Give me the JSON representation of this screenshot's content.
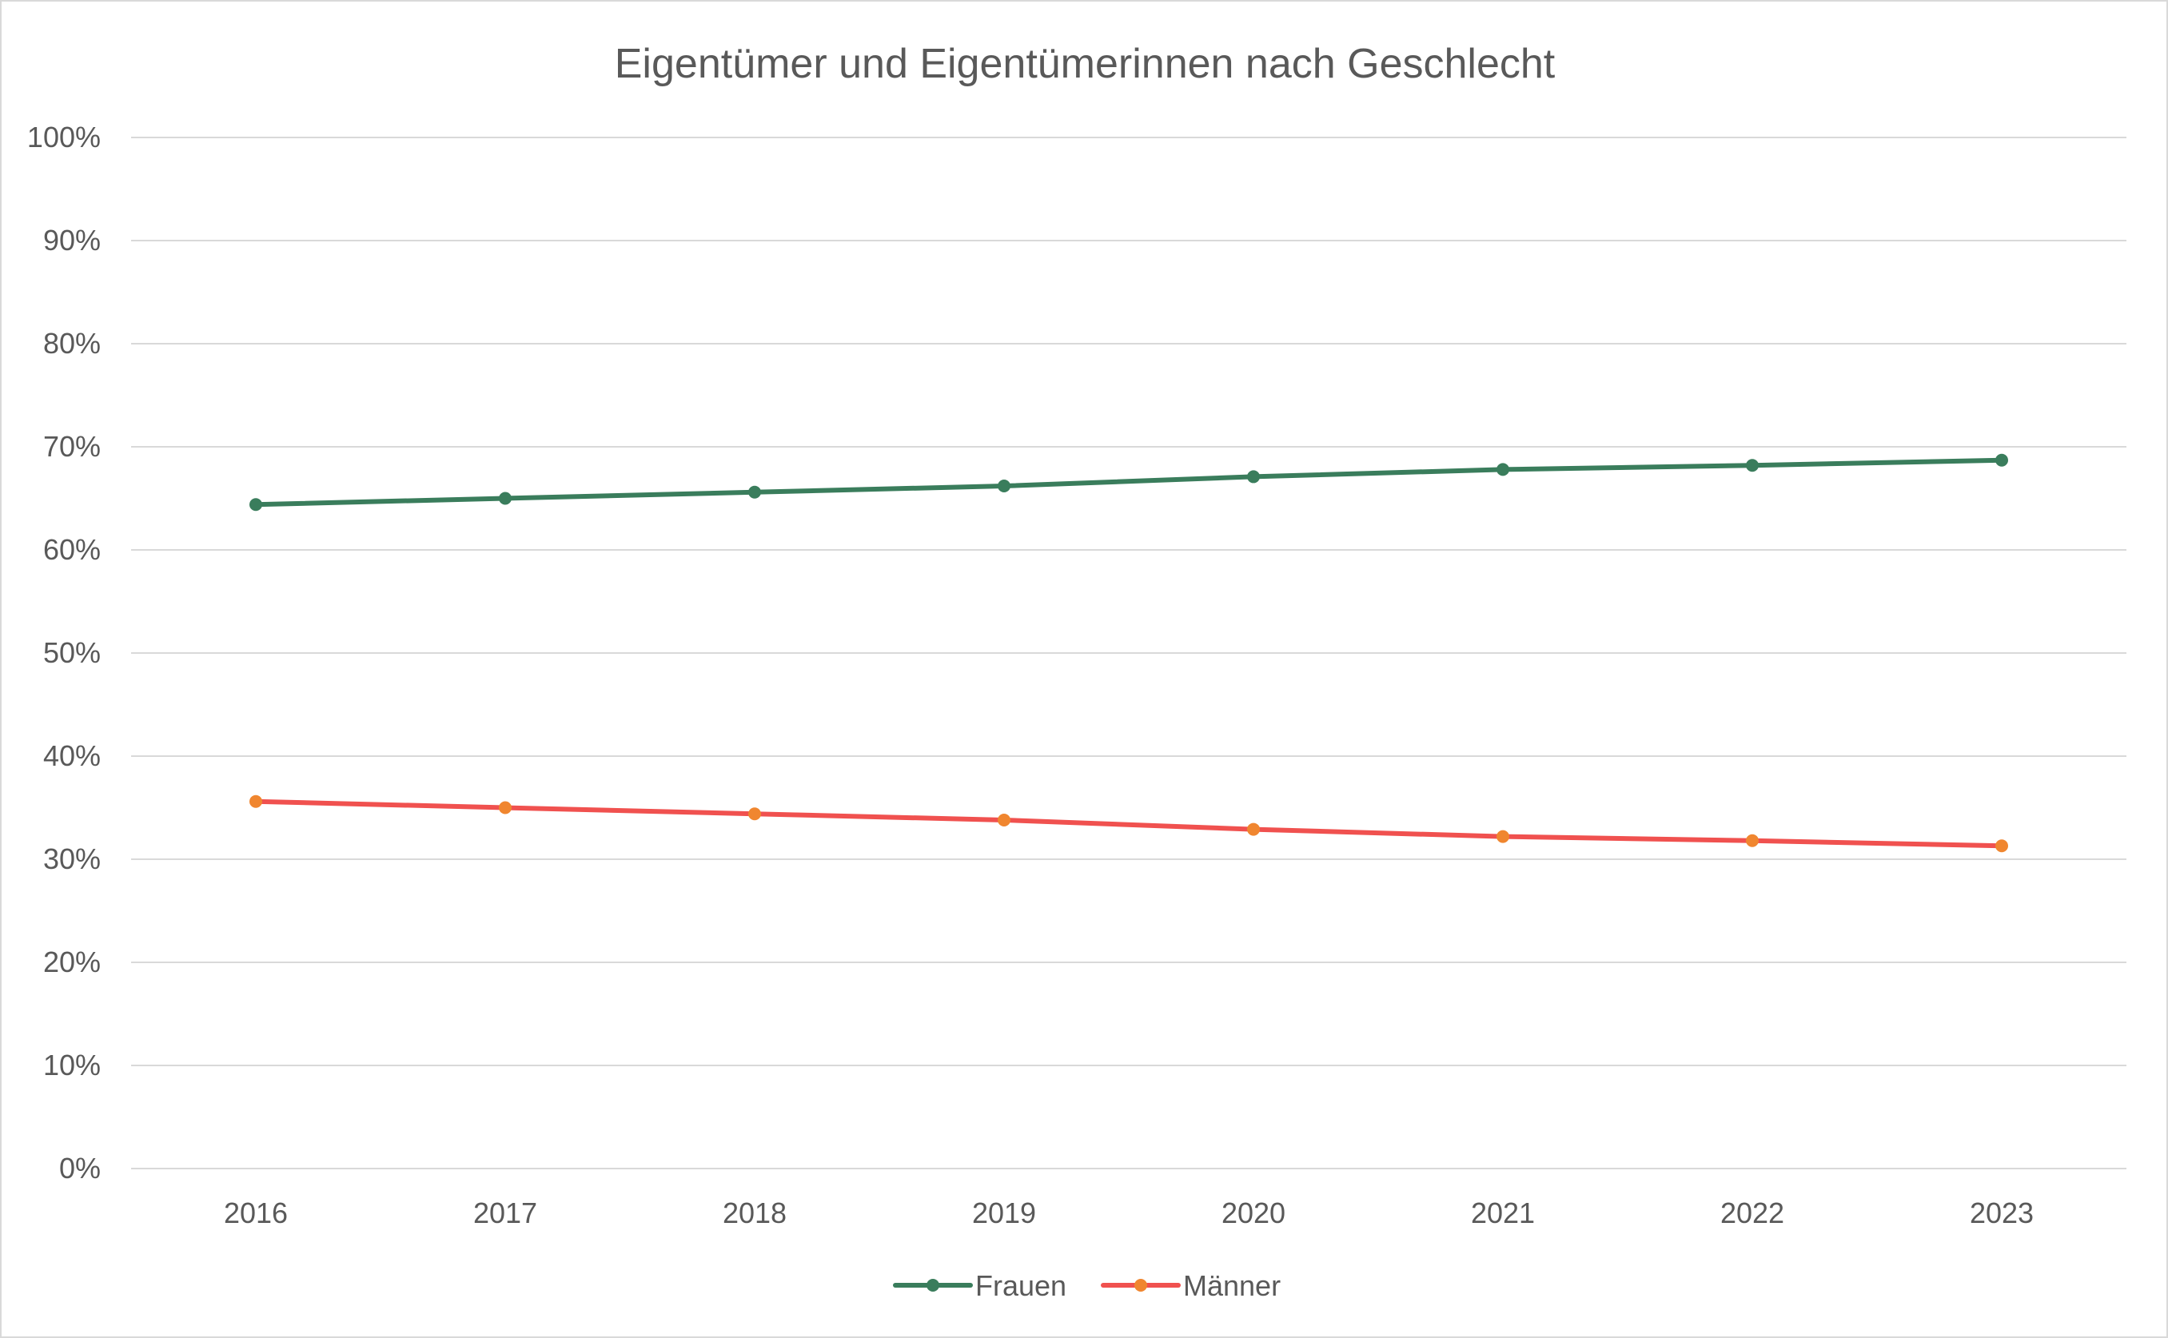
{
  "chart_data": {
    "type": "line",
    "title": "Eigentümer und Eigentümerinnen nach Geschlecht",
    "xlabel": "",
    "ylabel": "",
    "categories": [
      "2016",
      "2017",
      "2018",
      "2019",
      "2020",
      "2021",
      "2022",
      "2023"
    ],
    "y_ticks": [
      "0%",
      "10%",
      "20%",
      "30%",
      "40%",
      "50%",
      "60%",
      "70%",
      "80%",
      "90%",
      "100%"
    ],
    "ylim": [
      0,
      100
    ],
    "grid": true,
    "legend_position": "bottom",
    "series": [
      {
        "name": "Frauen",
        "color": "#3a7d5c",
        "values": [
          64.4,
          65.0,
          65.6,
          66.2,
          67.1,
          67.8,
          68.2,
          68.7
        ]
      },
      {
        "name": "Männer",
        "color": "#f0514f",
        "marker_color": "#f0862f",
        "values": [
          35.6,
          35.0,
          34.4,
          33.8,
          32.9,
          32.2,
          31.8,
          31.3
        ]
      }
    ]
  }
}
